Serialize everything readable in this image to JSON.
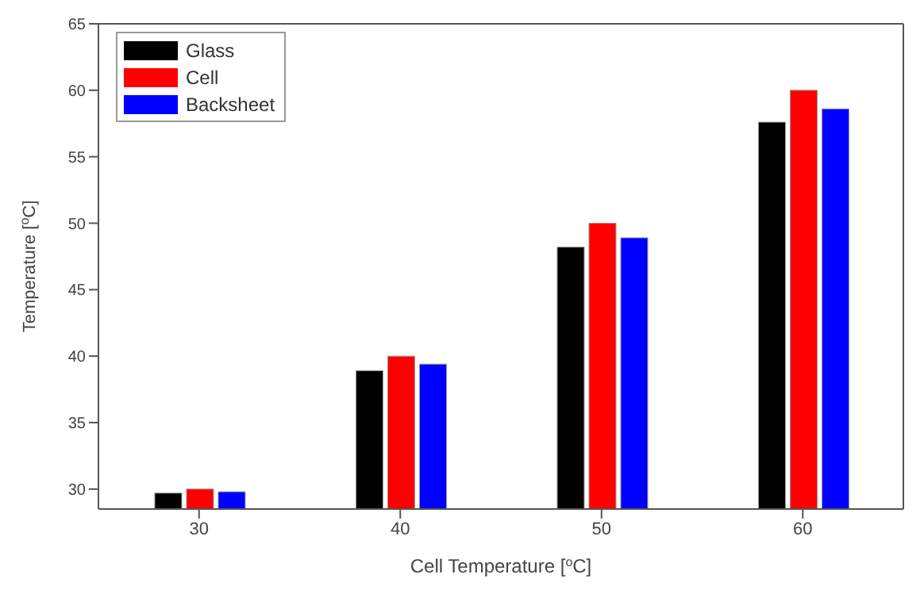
{
  "chart_data": {
    "type": "bar",
    "xlabel": "Cell Temperature [$^{o}$C]",
    "ylabel": "Temperature [$^{o}$C]",
    "categories": [
      "30",
      "40",
      "50",
      "60"
    ],
    "series": [
      {
        "name": "Glass",
        "color": "#000000",
        "values": [
          29.7,
          38.9,
          48.2,
          57.6
        ]
      },
      {
        "name": "Cell",
        "color": "#ff0000",
        "values": [
          30.0,
          40.0,
          50.0,
          60.0
        ]
      },
      {
        "name": "Backsheet",
        "color": "#0000ff",
        "values": [
          29.8,
          39.4,
          48.9,
          58.6
        ]
      }
    ],
    "ylim": [
      28.5,
      65
    ],
    "yticks": [
      30,
      35,
      40,
      45,
      50,
      55,
      60,
      65
    ],
    "grid": false,
    "legend": "top left"
  }
}
